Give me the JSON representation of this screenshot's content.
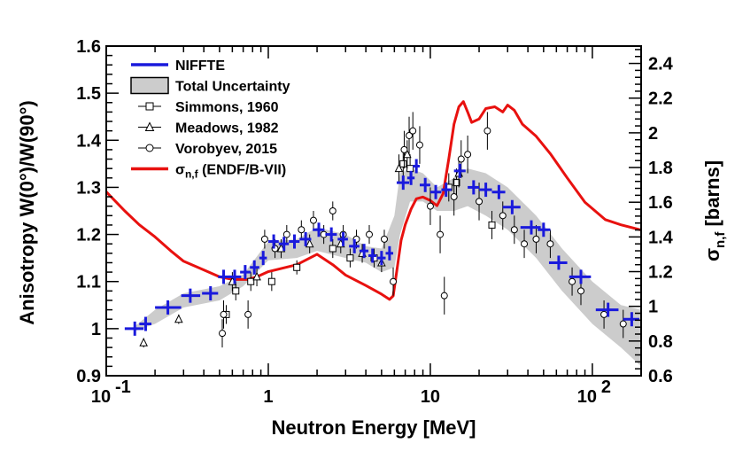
{
  "chart_data": {
    "type": "scatter",
    "xlabel": "Neutron Energy [MeV]",
    "ylabel": "Anisotropy W(0°)/W(90°)",
    "y2label": "σn,f [barns]",
    "x_scale": "log",
    "xlim": [
      0.1,
      200
    ],
    "ylim": [
      0.9,
      1.6
    ],
    "y2lim": [
      0.6,
      2.5
    ],
    "x_tick_labels": [
      "10^-1",
      "1",
      "10",
      "10^2"
    ],
    "y_tick_labels": [
      "0.9",
      "1",
      "1.1",
      "1.2",
      "1.3",
      "1.4",
      "1.5",
      "1.6"
    ],
    "y2_tick_labels": [
      "0.6",
      "0.8",
      "1",
      "1.2",
      "1.4",
      "1.6",
      "1.8",
      "2",
      "2.2",
      "2.4"
    ],
    "legend": {
      "position": "top-left",
      "entries": [
        {
          "key": "niffte",
          "label": "NIFFTE"
        },
        {
          "key": "band",
          "label": "Total Uncertainty"
        },
        {
          "key": "simmons",
          "label": "Simmons, 1960"
        },
        {
          "key": "meadows",
          "label": "Meadows, 1982"
        },
        {
          "key": "vorobyev",
          "label": "Vorobyev, 2015"
        },
        {
          "key": "endf",
          "label_sym": "σ",
          "label_sub": "n,f",
          "label_rest": " (ENDF/B-VII)"
        }
      ]
    },
    "colors": {
      "niffte": "#1a1adc",
      "endf": "#e8110f",
      "band": "#cccccc",
      "band_edge": "#555555",
      "markers": "#000000"
    },
    "niffte": [
      {
        "x": 0.15,
        "y": 1.0,
        "xlo": 0.13,
        "xhi": 0.17
      },
      {
        "x": 0.175,
        "y": 1.01,
        "xlo": 0.16,
        "xhi": 0.19
      },
      {
        "x": 0.24,
        "y": 1.045,
        "xlo": 0.2,
        "xhi": 0.29
      },
      {
        "x": 0.33,
        "y": 1.07,
        "xlo": 0.29,
        "xhi": 0.38
      },
      {
        "x": 0.44,
        "y": 1.075,
        "xlo": 0.39,
        "xhi": 0.49
      },
      {
        "x": 0.53,
        "y": 1.11,
        "xlo": 0.49,
        "xhi": 0.58
      },
      {
        "x": 0.62,
        "y": 1.11,
        "xlo": 0.57,
        "xhi": 0.68
      },
      {
        "x": 0.72,
        "y": 1.12,
        "xlo": 0.67,
        "xhi": 0.78
      },
      {
        "x": 0.82,
        "y": 1.13,
        "xlo": 0.77,
        "xhi": 0.88
      },
      {
        "x": 0.93,
        "y": 1.15,
        "xlo": 0.88,
        "xhi": 0.98
      },
      {
        "x": 1.08,
        "y": 1.185,
        "xlo": 1.0,
        "xhi": 1.16
      },
      {
        "x": 1.25,
        "y": 1.18,
        "xlo": 1.16,
        "xhi": 1.34
      },
      {
        "x": 1.45,
        "y": 1.185,
        "xlo": 1.34,
        "xhi": 1.56
      },
      {
        "x": 1.7,
        "y": 1.19,
        "xlo": 1.56,
        "xhi": 1.84
      },
      {
        "x": 2.05,
        "y": 1.21,
        "xlo": 1.88,
        "xhi": 2.22
      },
      {
        "x": 2.45,
        "y": 1.2,
        "xlo": 2.25,
        "xhi": 2.65
      },
      {
        "x": 2.9,
        "y": 1.19,
        "xlo": 2.68,
        "xhi": 3.1
      },
      {
        "x": 3.4,
        "y": 1.175,
        "xlo": 3.15,
        "xhi": 3.65
      },
      {
        "x": 3.9,
        "y": 1.165,
        "xlo": 3.65,
        "xhi": 4.15
      },
      {
        "x": 4.4,
        "y": 1.155,
        "xlo": 4.15,
        "xhi": 4.65
      },
      {
        "x": 5.0,
        "y": 1.15,
        "xlo": 4.7,
        "xhi": 5.3
      },
      {
        "x": 5.6,
        "y": 1.16,
        "xlo": 5.3,
        "xhi": 5.9
      },
      {
        "x": 6.8,
        "y": 1.31,
        "xlo": 6.2,
        "xhi": 7.4
      },
      {
        "x": 7.6,
        "y": 1.32,
        "xlo": 7.2,
        "xhi": 8.0
      },
      {
        "x": 8.2,
        "y": 1.345,
        "xlo": 7.8,
        "xhi": 8.6
      },
      {
        "x": 9.3,
        "y": 1.305,
        "xlo": 8.6,
        "xhi": 10.0
      },
      {
        "x": 10.8,
        "y": 1.29,
        "xlo": 10.0,
        "xhi": 11.7
      },
      {
        "x": 12.5,
        "y": 1.295,
        "xlo": 11.7,
        "xhi": 13.5
      },
      {
        "x": 15.2,
        "y": 1.335,
        "xlo": 14.0,
        "xhi": 16.5
      },
      {
        "x": 18.5,
        "y": 1.3,
        "xlo": 17.0,
        "xhi": 20.0
      },
      {
        "x": 22.0,
        "y": 1.295,
        "xlo": 20.0,
        "xhi": 24.0
      },
      {
        "x": 26.5,
        "y": 1.29,
        "xlo": 24.0,
        "xhi": 29.0
      },
      {
        "x": 32.0,
        "y": 1.258,
        "xlo": 28.0,
        "xhi": 36.0
      },
      {
        "x": 42.0,
        "y": 1.215,
        "xlo": 36.0,
        "xhi": 48.0
      },
      {
        "x": 50.0,
        "y": 1.21,
        "xlo": 46.0,
        "xhi": 55.0
      },
      {
        "x": 62.0,
        "y": 1.14,
        "xlo": 54.0,
        "xhi": 70.0
      },
      {
        "x": 85.0,
        "y": 1.11,
        "xlo": 72.0,
        "xhi": 98.0
      },
      {
        "x": 125.0,
        "y": 1.04,
        "xlo": 105.0,
        "xhi": 145.0
      },
      {
        "x": 175.0,
        "y": 1.02,
        "xlo": 155.0,
        "xhi": 195.0
      }
    ],
    "band_upper": [
      {
        "x": 0.15,
        "y": 1.005
      },
      {
        "x": 0.2,
        "y": 1.04
      },
      {
        "x": 0.3,
        "y": 1.075
      },
      {
        "x": 0.5,
        "y": 1.09
      },
      {
        "x": 0.7,
        "y": 1.115
      },
      {
        "x": 1.0,
        "y": 1.185
      },
      {
        "x": 1.5,
        "y": 1.19
      },
      {
        "x": 2.0,
        "y": 1.215
      },
      {
        "x": 3.0,
        "y": 1.2
      },
      {
        "x": 4.0,
        "y": 1.175
      },
      {
        "x": 5.0,
        "y": 1.17
      },
      {
        "x": 6.0,
        "y": 1.24
      },
      {
        "x": 6.5,
        "y": 1.33
      },
      {
        "x": 7.5,
        "y": 1.34
      },
      {
        "x": 9.0,
        "y": 1.33
      },
      {
        "x": 11.0,
        "y": 1.3
      },
      {
        "x": 14.0,
        "y": 1.32
      },
      {
        "x": 17.0,
        "y": 1.34
      },
      {
        "x": 22.0,
        "y": 1.33
      },
      {
        "x": 30.0,
        "y": 1.3
      },
      {
        "x": 45.0,
        "y": 1.24
      },
      {
        "x": 65.0,
        "y": 1.17
      },
      {
        "x": 100.0,
        "y": 1.1
      },
      {
        "x": 150.0,
        "y": 1.05
      },
      {
        "x": 200.0,
        "y": 1.04
      }
    ],
    "band_lower": [
      {
        "x": 0.15,
        "y": 0.995
      },
      {
        "x": 0.2,
        "y": 1.01
      },
      {
        "x": 0.3,
        "y": 1.045
      },
      {
        "x": 0.5,
        "y": 1.06
      },
      {
        "x": 0.7,
        "y": 1.09
      },
      {
        "x": 1.0,
        "y": 1.145
      },
      {
        "x": 1.5,
        "y": 1.15
      },
      {
        "x": 2.0,
        "y": 1.165
      },
      {
        "x": 3.0,
        "y": 1.15
      },
      {
        "x": 4.0,
        "y": 1.14
      },
      {
        "x": 5.0,
        "y": 1.12
      },
      {
        "x": 6.0,
        "y": 1.13
      },
      {
        "x": 6.5,
        "y": 1.2
      },
      {
        "x": 7.5,
        "y": 1.27
      },
      {
        "x": 9.0,
        "y": 1.27
      },
      {
        "x": 11.0,
        "y": 1.25
      },
      {
        "x": 14.0,
        "y": 1.25
      },
      {
        "x": 17.0,
        "y": 1.26
      },
      {
        "x": 22.0,
        "y": 1.24
      },
      {
        "x": 30.0,
        "y": 1.21
      },
      {
        "x": 45.0,
        "y": 1.15
      },
      {
        "x": 65.0,
        "y": 1.08
      },
      {
        "x": 100.0,
        "y": 1.01
      },
      {
        "x": 150.0,
        "y": 0.96
      },
      {
        "x": 200.0,
        "y": 0.92
      }
    ],
    "endf": [
      {
        "x": 0.1,
        "y": 1.66
      },
      {
        "x": 0.13,
        "y": 1.55
      },
      {
        "x": 0.16,
        "y": 1.47
      },
      {
        "x": 0.2,
        "y": 1.4
      },
      {
        "x": 0.25,
        "y": 1.32
      },
      {
        "x": 0.3,
        "y": 1.26
      },
      {
        "x": 0.4,
        "y": 1.21
      },
      {
        "x": 0.5,
        "y": 1.17
      },
      {
        "x": 0.6,
        "y": 1.155
      },
      {
        "x": 0.75,
        "y": 1.155
      },
      {
        "x": 0.85,
        "y": 1.17
      },
      {
        "x": 1.0,
        "y": 1.2
      },
      {
        "x": 1.5,
        "y": 1.24
      },
      {
        "x": 2.0,
        "y": 1.3
      },
      {
        "x": 2.5,
        "y": 1.24
      },
      {
        "x": 3.0,
        "y": 1.18
      },
      {
        "x": 4.0,
        "y": 1.12
      },
      {
        "x": 5.0,
        "y": 1.07
      },
      {
        "x": 5.6,
        "y": 1.04
      },
      {
        "x": 5.9,
        "y": 1.06
      },
      {
        "x": 6.2,
        "y": 1.2
      },
      {
        "x": 6.6,
        "y": 1.38
      },
      {
        "x": 7.0,
        "y": 1.47
      },
      {
        "x": 7.6,
        "y": 1.56
      },
      {
        "x": 8.2,
        "y": 1.62
      },
      {
        "x": 9.0,
        "y": 1.63
      },
      {
        "x": 10.0,
        "y": 1.61
      },
      {
        "x": 11.0,
        "y": 1.58
      },
      {
        "x": 12.0,
        "y": 1.65
      },
      {
        "x": 13.0,
        "y": 1.85
      },
      {
        "x": 14.0,
        "y": 2.05
      },
      {
        "x": 15.0,
        "y": 2.15
      },
      {
        "x": 16.0,
        "y": 2.18
      },
      {
        "x": 17.0,
        "y": 2.12
      },
      {
        "x": 18.0,
        "y": 2.06
      },
      {
        "x": 20.0,
        "y": 2.08
      },
      {
        "x": 22.0,
        "y": 2.14
      },
      {
        "x": 25.0,
        "y": 2.15
      },
      {
        "x": 28.0,
        "y": 2.12
      },
      {
        "x": 30.0,
        "y": 2.16
      },
      {
        "x": 33.0,
        "y": 2.13
      },
      {
        "x": 37.0,
        "y": 2.05
      },
      {
        "x": 45.0,
        "y": 1.98
      },
      {
        "x": 55.0,
        "y": 1.88
      },
      {
        "x": 70.0,
        "y": 1.74
      },
      {
        "x": 90.0,
        "y": 1.6
      },
      {
        "x": 120.0,
        "y": 1.5
      },
      {
        "x": 150.0,
        "y": 1.47
      },
      {
        "x": 200.0,
        "y": 1.44
      }
    ],
    "simmons": [
      {
        "x": 0.55,
        "y": 1.03,
        "err": 0.02
      },
      {
        "x": 0.63,
        "y": 1.08,
        "err": 0.02
      },
      {
        "x": 0.78,
        "y": 1.1,
        "err": 0.02
      },
      {
        "x": 1.05,
        "y": 1.1,
        "err": 0.02
      },
      {
        "x": 1.5,
        "y": 1.13,
        "err": 0.015
      },
      {
        "x": 2.5,
        "y": 1.17,
        "err": 0.02
      },
      {
        "x": 3.2,
        "y": 1.15,
        "err": 0.02
      },
      {
        "x": 4.5,
        "y": 1.15,
        "err": 0.02
      },
      {
        "x": 6.8,
        "y": 1.35,
        "err": 0.03
      },
      {
        "x": 7.5,
        "y": 1.34,
        "err": 0.03
      },
      {
        "x": 13.0,
        "y": 1.3,
        "err": 0.03
      },
      {
        "x": 14.5,
        "y": 1.31,
        "err": 0.03
      },
      {
        "x": 24.0,
        "y": 1.22,
        "err": 0.03
      }
    ],
    "meadows": [
      {
        "x": 0.17,
        "y": 0.97,
        "err": 0.01
      },
      {
        "x": 0.28,
        "y": 1.02,
        "err": 0.01
      },
      {
        "x": 0.6,
        "y": 1.1,
        "err": 0.02
      },
      {
        "x": 0.85,
        "y": 1.11,
        "err": 0.02
      },
      {
        "x": 1.2,
        "y": 1.17,
        "err": 0.02
      },
      {
        "x": 1.8,
        "y": 1.18,
        "err": 0.02
      },
      {
        "x": 2.8,
        "y": 1.18,
        "err": 0.02
      },
      {
        "x": 3.8,
        "y": 1.16,
        "err": 0.02
      },
      {
        "x": 5.0,
        "y": 1.14,
        "err": 0.02
      },
      {
        "x": 6.4,
        "y": 1.34,
        "err": 0.03
      },
      {
        "x": 7.2,
        "y": 1.37,
        "err": 0.03
      },
      {
        "x": 15.0,
        "y": 1.33,
        "err": 0.03
      }
    ],
    "vorobyev": [
      {
        "x": 0.52,
        "y": 0.99,
        "err": 0.03
      },
      {
        "x": 0.53,
        "y": 1.03,
        "err": 0.03
      },
      {
        "x": 0.75,
        "y": 1.03,
        "err": 0.03
      },
      {
        "x": 0.95,
        "y": 1.19,
        "err": 0.02
      },
      {
        "x": 1.1,
        "y": 1.17,
        "err": 0.02
      },
      {
        "x": 1.3,
        "y": 1.2,
        "err": 0.02
      },
      {
        "x": 1.6,
        "y": 1.21,
        "err": 0.02
      },
      {
        "x": 1.9,
        "y": 1.23,
        "err": 0.02
      },
      {
        "x": 2.2,
        "y": 1.2,
        "err": 0.02
      },
      {
        "x": 2.5,
        "y": 1.25,
        "err": 0.02
      },
      {
        "x": 2.9,
        "y": 1.2,
        "err": 0.02
      },
      {
        "x": 3.5,
        "y": 1.19,
        "err": 0.02
      },
      {
        "x": 4.2,
        "y": 1.2,
        "err": 0.02
      },
      {
        "x": 5.2,
        "y": 1.19,
        "err": 0.02
      },
      {
        "x": 5.9,
        "y": 1.1,
        "err": 0.03
      },
      {
        "x": 6.9,
        "y": 1.38,
        "err": 0.04
      },
      {
        "x": 7.4,
        "y": 1.41,
        "err": 0.04
      },
      {
        "x": 7.8,
        "y": 1.42,
        "err": 0.04
      },
      {
        "x": 8.6,
        "y": 1.39,
        "err": 0.04
      },
      {
        "x": 10.0,
        "y": 1.26,
        "err": 0.04
      },
      {
        "x": 11.5,
        "y": 1.2,
        "err": 0.04
      },
      {
        "x": 12.2,
        "y": 1.07,
        "err": 0.04
      },
      {
        "x": 14.0,
        "y": 1.28,
        "err": 0.04
      },
      {
        "x": 15.5,
        "y": 1.36,
        "err": 0.04
      },
      {
        "x": 17.0,
        "y": 1.37,
        "err": 0.04
      },
      {
        "x": 20.0,
        "y": 1.27,
        "err": 0.04
      },
      {
        "x": 22.5,
        "y": 1.42,
        "err": 0.04
      },
      {
        "x": 28.0,
        "y": 1.24,
        "err": 0.03
      },
      {
        "x": 33.0,
        "y": 1.21,
        "err": 0.03
      },
      {
        "x": 38.0,
        "y": 1.18,
        "err": 0.03
      },
      {
        "x": 45.0,
        "y": 1.19,
        "err": 0.03
      },
      {
        "x": 55.0,
        "y": 1.18,
        "err": 0.03
      },
      {
        "x": 75.0,
        "y": 1.1,
        "err": 0.03
      },
      {
        "x": 85.0,
        "y": 1.08,
        "err": 0.03
      },
      {
        "x": 118.0,
        "y": 1.03,
        "err": 0.03
      },
      {
        "x": 155.0,
        "y": 1.01,
        "err": 0.03
      }
    ]
  }
}
